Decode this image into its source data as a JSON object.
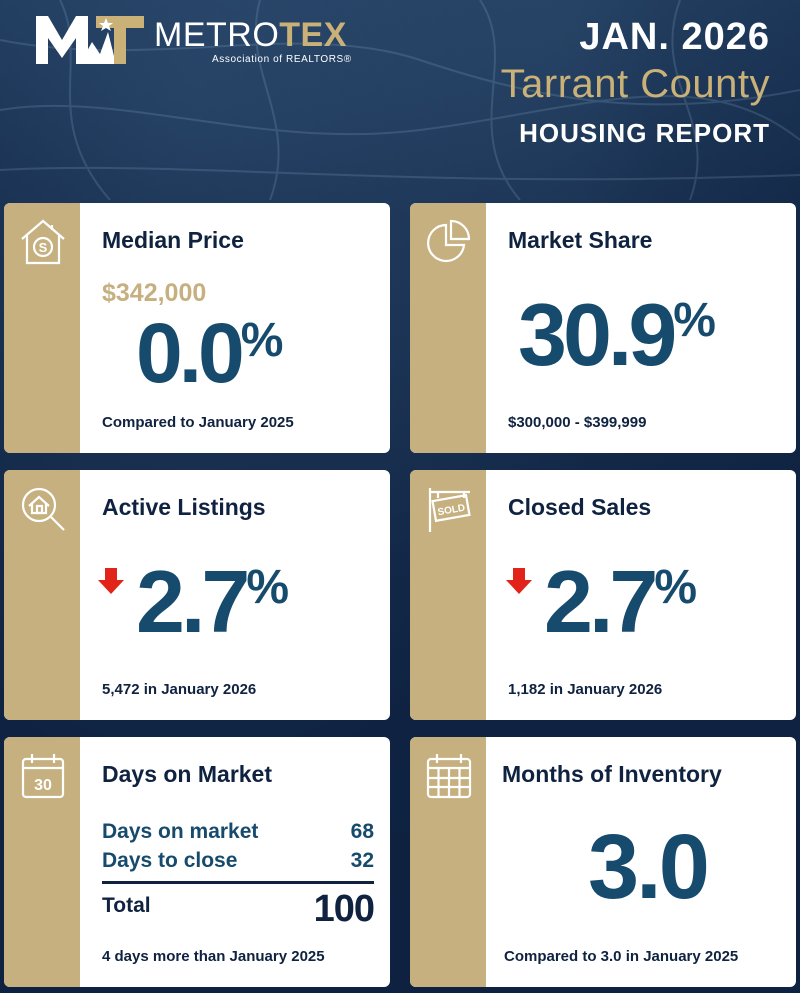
{
  "header": {
    "logo_metro": "METRO",
    "logo_tex": "TEX",
    "logo_sub": "Association of REALTORS®",
    "month": "JAN. 2026",
    "county": "Tarrant County",
    "report": "HOUSING REPORT"
  },
  "colors": {
    "navy": "#0f2240",
    "gold": "#c6b07f",
    "teal": "#164b6e",
    "arrow_down": "#e2231a"
  },
  "cards": {
    "median_price": {
      "icon": "house-dollar-icon",
      "title": "Median Price",
      "price": "$342,000",
      "value": "0.0",
      "unit": "%",
      "foot": "Compared to January 2025"
    },
    "market_share": {
      "icon": "pie-chart-icon",
      "title": "Market Share",
      "value": "30.9",
      "unit": "%",
      "foot": "$300,000 - $399,999"
    },
    "active_listings": {
      "icon": "house-search-icon",
      "title": "Active Listings",
      "trend": "down",
      "value": "2.7",
      "unit": "%",
      "foot": "5,472 in January 2026"
    },
    "closed_sales": {
      "icon": "sold-sign-icon",
      "title": "Closed Sales",
      "trend": "down",
      "value": "2.7",
      "unit": "%",
      "foot": "1,182 in January 2026"
    },
    "days_on_market": {
      "icon": "calendar-30-icon",
      "icon_text": "30",
      "title": "Days on Market",
      "rows": [
        {
          "label": "Days on market",
          "value": "68"
        },
        {
          "label": "Days to close",
          "value": "32"
        }
      ],
      "total_label": "Total",
      "total_value": "100",
      "foot": "4 days more than January 2025"
    },
    "months_inventory": {
      "icon": "calendar-grid-icon",
      "title": "Months of Inventory",
      "value": "3.0",
      "foot": "Compared to 3.0 in January 2025"
    }
  }
}
